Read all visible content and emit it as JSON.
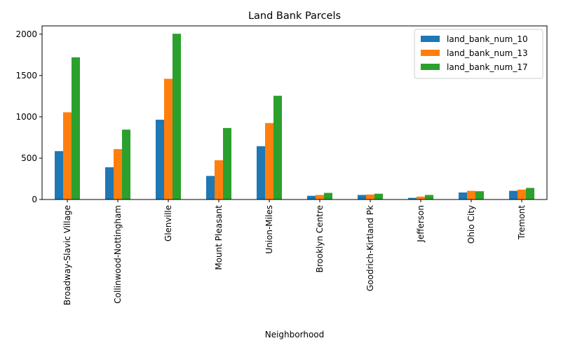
{
  "chart_data": {
    "type": "bar",
    "title": "Land Bank Parcels",
    "xlabel": "Neighborhood",
    "ylabel": "",
    "ylim": [
      0,
      2100
    ],
    "yticks": [
      0,
      500,
      1000,
      1500,
      2000
    ],
    "legend_position": "top-right",
    "grid": false,
    "categories": [
      "Broadway-Slavic Village",
      "Collinwood-Nottingham",
      "Glenville",
      "Mount Pleasant",
      "Union-Miles",
      "Brooklyn Centre",
      "Goodrich-Kirtland Pk",
      "Jefferson",
      "Ohio City",
      "Tremont"
    ],
    "series": [
      {
        "name": "land_bank_num_10",
        "color": "#1f77b4",
        "values": [
          585,
          390,
          965,
          285,
          645,
          45,
          55,
          20,
          85,
          105
        ]
      },
      {
        "name": "land_bank_num_13",
        "color": "#ff7f0e",
        "values": [
          1055,
          610,
          1460,
          475,
          925,
          55,
          60,
          35,
          105,
          120
        ]
      },
      {
        "name": "land_bank_num_17",
        "color": "#2ca02c",
        "values": [
          1720,
          845,
          2005,
          865,
          1255,
          80,
          70,
          55,
          100,
          140
        ]
      }
    ]
  }
}
